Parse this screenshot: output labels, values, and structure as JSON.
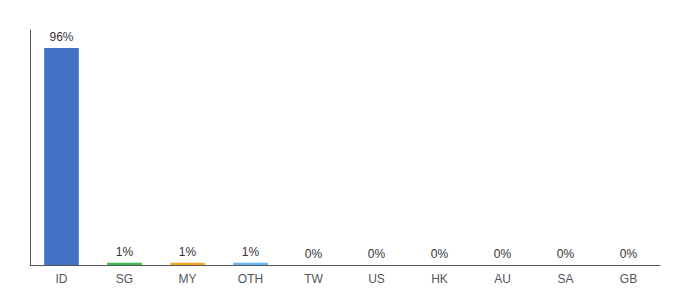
{
  "chart_data": {
    "type": "bar",
    "categories": [
      "ID",
      "SG",
      "MY",
      "OTH",
      "TW",
      "US",
      "HK",
      "AU",
      "SA",
      "GB"
    ],
    "values": [
      96,
      1,
      1,
      1,
      0,
      0,
      0,
      0,
      0,
      0
    ],
    "value_labels": [
      "96%",
      "1%",
      "1%",
      "1%",
      "0%",
      "0%",
      "0%",
      "0%",
      "0%",
      "0%"
    ],
    "colors": [
      "#4472c4",
      "#3cba54",
      "#f4a623",
      "#64b5f6",
      "#4472c4",
      "#4472c4",
      "#4472c4",
      "#4472c4",
      "#4472c4",
      "#4472c4"
    ],
    "ylim": [
      0,
      104
    ],
    "tick_labels": "x",
    "grid": false,
    "data_labels": true
  }
}
